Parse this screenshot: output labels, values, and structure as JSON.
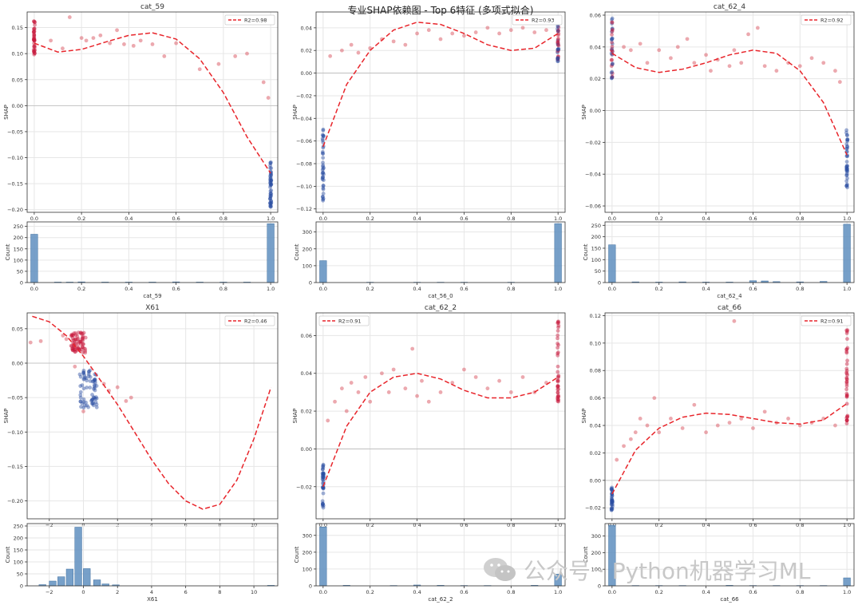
{
  "figure_title": "专业SHAP依赖图 - Top 6特征 (多项式拟合)",
  "watermark": {
    "text": "公众号 · Python机器学习ML",
    "icon": "wechat-icon"
  },
  "colors": {
    "fit": "#e8252b",
    "hist": "#5f8fbf",
    "low": "#2b4ea2",
    "high": "#c8193c",
    "grid": "#e6e6e6"
  },
  "chart_data": [
    {
      "id": "cat_59",
      "type": "scatter",
      "title": "cat_59",
      "xlabel": "cat_59",
      "ylabel": "SHAP",
      "xlim": [
        -0.03,
        1.03
      ],
      "ylim": [
        -0.205,
        0.18
      ],
      "xticks": [
        0.0,
        0.2,
        0.4,
        0.6,
        0.8,
        1.0
      ],
      "yticks": [
        -0.2,
        -0.15,
        -0.1,
        -0.05,
        0.0,
        0.05,
        0.1,
        0.15
      ],
      "legend": {
        "label": "R2=0.98",
        "position": "top-right"
      },
      "fit": {
        "x": [
          0.0,
          0.1,
          0.2,
          0.3,
          0.4,
          0.5,
          0.6,
          0.7,
          0.8,
          0.9,
          1.0
        ],
        "y": [
          0.12,
          0.103,
          0.108,
          0.122,
          0.135,
          0.14,
          0.128,
          0.09,
          0.025,
          -0.06,
          -0.13
        ]
      },
      "clusters": [
        {
          "x": 0.0,
          "y_min": 0.095,
          "y_max": 0.165,
          "n": 40,
          "color": "high"
        },
        {
          "x": 1.0,
          "y_min": -0.195,
          "y_max": -0.1,
          "n": 50,
          "color": "low"
        }
      ],
      "points": [
        [
          0.07,
          0.125
        ],
        [
          0.12,
          0.11
        ],
        [
          0.15,
          0.17
        ],
        [
          0.2,
          0.13
        ],
        [
          0.22,
          0.125
        ],
        [
          0.25,
          0.13
        ],
        [
          0.28,
          0.135
        ],
        [
          0.32,
          0.12
        ],
        [
          0.35,
          0.145
        ],
        [
          0.38,
          0.118
        ],
        [
          0.42,
          0.115
        ],
        [
          0.45,
          0.125
        ],
        [
          0.5,
          0.118
        ],
        [
          0.55,
          0.095
        ],
        [
          0.6,
          0.12
        ],
        [
          0.7,
          0.07
        ],
        [
          0.78,
          0.08
        ],
        [
          0.85,
          0.095
        ],
        [
          0.9,
          0.1
        ],
        [
          0.97,
          0.045
        ],
        [
          0.99,
          0.015
        ]
      ],
      "hist": {
        "ylabel": "Count",
        "ylim": [
          0,
          270
        ],
        "yticks": [
          0,
          50,
          100,
          150,
          200,
          250
        ],
        "bins": [
          [
            0.0,
            215
          ],
          [
            0.1,
            2
          ],
          [
            0.15,
            2
          ],
          [
            0.2,
            3
          ],
          [
            0.3,
            2
          ],
          [
            0.4,
            2
          ],
          [
            0.5,
            2
          ],
          [
            0.6,
            3
          ],
          [
            0.7,
            2
          ],
          [
            0.8,
            2
          ],
          [
            0.9,
            2
          ],
          [
            1.0,
            262
          ]
        ]
      }
    },
    {
      "id": "cat_56_0",
      "type": "scatter",
      "title": "",
      "xlabel": "cat_56_0",
      "ylabel": "SHAP",
      "xlim": [
        -0.03,
        1.03
      ],
      "ylim": [
        -0.123,
        0.054
      ],
      "xticks": [
        0.0,
        0.2,
        0.4,
        0.6,
        0.8,
        1.0
      ],
      "yticks": [
        -0.12,
        -0.1,
        -0.08,
        -0.06,
        -0.04,
        -0.02,
        0.0,
        0.02,
        0.04
      ],
      "legend": {
        "label": "R2=0.93",
        "position": "top-right"
      },
      "fit": {
        "x": [
          0.0,
          0.1,
          0.2,
          0.3,
          0.4,
          0.5,
          0.6,
          0.7,
          0.8,
          0.9,
          1.0
        ],
        "y": [
          -0.065,
          -0.01,
          0.02,
          0.038,
          0.045,
          0.043,
          0.035,
          0.025,
          0.02,
          0.022,
          0.035
        ]
      },
      "clusters": [
        {
          "x": 0.0,
          "y_min": -0.115,
          "y_max": -0.048,
          "n": 40,
          "color": "low"
        },
        {
          "x": 1.0,
          "y_min": 0.01,
          "y_max": 0.043,
          "n": 40,
          "color": "mixed"
        }
      ],
      "points": [
        [
          0.03,
          0.015
        ],
        [
          0.08,
          0.02
        ],
        [
          0.12,
          0.025
        ],
        [
          0.15,
          0.018
        ],
        [
          0.2,
          0.022
        ],
        [
          0.25,
          0.03
        ],
        [
          0.3,
          0.028
        ],
        [
          0.35,
          0.025
        ],
        [
          0.4,
          0.035
        ],
        [
          0.45,
          0.038
        ],
        [
          0.5,
          0.03
        ],
        [
          0.55,
          0.035
        ],
        [
          0.6,
          0.033
        ],
        [
          0.65,
          0.036
        ],
        [
          0.7,
          0.04
        ],
        [
          0.75,
          0.035
        ],
        [
          0.8,
          0.038
        ],
        [
          0.85,
          0.04
        ],
        [
          0.9,
          0.036
        ],
        [
          0.95,
          0.038
        ]
      ],
      "hist": {
        "ylabel": "Count",
        "ylim": [
          0,
          360
        ],
        "yticks": [
          0,
          100,
          200,
          300
        ],
        "bins": [
          [
            0.0,
            130
          ],
          [
            0.2,
            2
          ],
          [
            0.4,
            2
          ],
          [
            0.5,
            2
          ],
          [
            0.6,
            2
          ],
          [
            0.8,
            2
          ],
          [
            1.0,
            350
          ]
        ]
      }
    },
    {
      "id": "cat_62_4",
      "type": "scatter",
      "title": "cat_62_4",
      "xlabel": "cat_62_4",
      "ylabel": "SHAP",
      "xlim": [
        -0.03,
        1.03
      ],
      "ylim": [
        -0.064,
        0.062
      ],
      "xticks": [
        0.0,
        0.2,
        0.4,
        0.6,
        0.8,
        1.0
      ],
      "yticks": [
        -0.06,
        -0.04,
        -0.02,
        0.0,
        0.02,
        0.04,
        0.06
      ],
      "legend": {
        "label": "R2=0.92",
        "position": "top-right"
      },
      "fit": {
        "x": [
          0.0,
          0.1,
          0.2,
          0.3,
          0.4,
          0.5,
          0.6,
          0.7,
          0.8,
          0.9,
          1.0
        ],
        "y": [
          0.036,
          0.027,
          0.024,
          0.026,
          0.03,
          0.035,
          0.038,
          0.036,
          0.025,
          0.005,
          -0.028
        ]
      },
      "clusters": [
        {
          "x": 0.0,
          "y_min": 0.02,
          "y_max": 0.06,
          "n": 40,
          "color": "mixed"
        },
        {
          "x": 1.0,
          "y_min": -0.05,
          "y_max": -0.012,
          "n": 40,
          "color": "low"
        }
      ],
      "points": [
        [
          0.05,
          0.04
        ],
        [
          0.08,
          0.038
        ],
        [
          0.12,
          0.042
        ],
        [
          0.15,
          0.03
        ],
        [
          0.2,
          0.038
        ],
        [
          0.25,
          0.033
        ],
        [
          0.28,
          0.04
        ],
        [
          0.32,
          0.045
        ],
        [
          0.35,
          0.03
        ],
        [
          0.4,
          0.035
        ],
        [
          0.42,
          0.025
        ],
        [
          0.45,
          0.032
        ],
        [
          0.5,
          0.028
        ],
        [
          0.52,
          0.038
        ],
        [
          0.55,
          0.03
        ],
        [
          0.58,
          0.048
        ],
        [
          0.62,
          0.052
        ],
        [
          0.65,
          0.028
        ],
        [
          0.7,
          0.025
        ],
        [
          0.75,
          0.03
        ],
        [
          0.8,
          0.028
        ],
        [
          0.85,
          0.033
        ],
        [
          0.9,
          0.03
        ],
        [
          0.95,
          0.025
        ],
        [
          0.97,
          0.018
        ]
      ],
      "hist": {
        "ylabel": "Count",
        "ylim": [
          0,
          265
        ],
        "yticks": [
          0,
          50,
          100,
          150,
          200,
          250
        ],
        "bins": [
          [
            0.0,
            165
          ],
          [
            0.1,
            3
          ],
          [
            0.2,
            2
          ],
          [
            0.3,
            3
          ],
          [
            0.4,
            2
          ],
          [
            0.5,
            2
          ],
          [
            0.6,
            8
          ],
          [
            0.65,
            7
          ],
          [
            0.7,
            4
          ],
          [
            0.8,
            3
          ],
          [
            0.9,
            5
          ],
          [
            1.0,
            255
          ]
        ]
      }
    },
    {
      "id": "X61",
      "type": "scatter",
      "title": "X61",
      "xlabel": "X61",
      "ylabel": "SHAP",
      "xlim": [
        -3.3,
        11.4
      ],
      "ylim": [
        -0.226,
        0.073
      ],
      "xticks": [
        -2,
        0,
        2,
        4,
        6,
        8,
        10
      ],
      "yticks": [
        -0.2,
        -0.15,
        -0.1,
        -0.05,
        0.0,
        0.05
      ],
      "legend": {
        "label": "R2=0.46",
        "position": "top-right"
      },
      "fit": {
        "x": [
          -3.0,
          -2.0,
          -1.0,
          0.0,
          1.0,
          2.0,
          3.0,
          4.0,
          5.0,
          6.0,
          7.0,
          8.0,
          9.0,
          10.0,
          11.0
        ],
        "y": [
          0.068,
          0.06,
          0.04,
          0.01,
          -0.025,
          -0.06,
          -0.1,
          -0.14,
          -0.175,
          -0.2,
          -0.212,
          -0.205,
          -0.17,
          -0.11,
          -0.035
        ]
      },
      "clusters": [
        {
          "x": -0.3,
          "x_spread": 0.9,
          "y_min": 0.015,
          "y_max": 0.045,
          "n": 70,
          "color": "high"
        },
        {
          "x": 0.3,
          "x_spread": 1.0,
          "y_min": -0.065,
          "y_max": -0.01,
          "n": 70,
          "color": "low"
        }
      ],
      "points": [
        [
          -3.1,
          0.03
        ],
        [
          -2.5,
          0.032
        ],
        [
          -1.2,
          0.04
        ],
        [
          -1.0,
          0.035
        ],
        [
          1.2,
          -0.03
        ],
        [
          1.5,
          -0.04
        ],
        [
          2.0,
          -0.035
        ],
        [
          2.5,
          -0.055
        ],
        [
          2.8,
          -0.05
        ],
        [
          -0.5,
          -0.005
        ],
        [
          0.0,
          -0.07
        ]
      ],
      "hist": {
        "ylabel": "Count",
        "ylim": [
          0,
          260
        ],
        "yticks": [
          0,
          50,
          100,
          150,
          200,
          250
        ],
        "bins": [
          [
            -2.4,
            5
          ],
          [
            -1.8,
            20
          ],
          [
            -1.3,
            38
          ],
          [
            -0.8,
            70
          ],
          [
            -0.3,
            245
          ],
          [
            0.2,
            72
          ],
          [
            0.8,
            25
          ],
          [
            1.3,
            8
          ],
          [
            1.9,
            4
          ],
          [
            11.0,
            2
          ]
        ]
      }
    },
    {
      "id": "cat_62_2",
      "type": "scatter",
      "title": "cat_62_2",
      "xlabel": "cat_62_2",
      "ylabel": "SHAP",
      "xlim": [
        -0.03,
        1.03
      ],
      "ylim": [
        -0.037,
        0.072
      ],
      "xticks": [
        0.0,
        0.2,
        0.4,
        0.6,
        0.8,
        1.0
      ],
      "yticks": [
        -0.02,
        0.0,
        0.02,
        0.04,
        0.06
      ],
      "legend": {
        "label": "R2=0.91",
        "position": "top-left"
      },
      "fit": {
        "x": [
          0.0,
          0.1,
          0.2,
          0.3,
          0.4,
          0.5,
          0.6,
          0.7,
          0.8,
          0.9,
          1.0
        ],
        "y": [
          -0.02,
          0.012,
          0.03,
          0.038,
          0.04,
          0.037,
          0.031,
          0.027,
          0.027,
          0.03,
          0.038
        ]
      },
      "clusters": [
        {
          "x": 0.0,
          "y_min": -0.032,
          "y_max": -0.008,
          "n": 40,
          "color": "low"
        },
        {
          "x": 1.0,
          "y_min": 0.025,
          "y_max": 0.068,
          "n": 40,
          "color": "high"
        }
      ],
      "points": [
        [
          0.02,
          0.015
        ],
        [
          0.05,
          0.025
        ],
        [
          0.08,
          0.032
        ],
        [
          0.1,
          0.02
        ],
        [
          0.12,
          0.035
        ],
        [
          0.15,
          0.03
        ],
        [
          0.18,
          0.038
        ],
        [
          0.2,
          0.025
        ],
        [
          0.25,
          0.04
        ],
        [
          0.28,
          0.03
        ],
        [
          0.3,
          0.042
        ],
        [
          0.35,
          0.032
        ],
        [
          0.38,
          0.053
        ],
        [
          0.4,
          0.028
        ],
        [
          0.42,
          0.036
        ],
        [
          0.45,
          0.025
        ],
        [
          0.5,
          0.03
        ],
        [
          0.55,
          0.035
        ],
        [
          0.6,
          0.042
        ],
        [
          0.65,
          0.038
        ],
        [
          0.7,
          0.032
        ],
        [
          0.75,
          0.036
        ],
        [
          0.8,
          0.03
        ],
        [
          0.85,
          0.038
        ],
        [
          0.9,
          0.03
        ],
        [
          0.95,
          0.035
        ]
      ],
      "hist": {
        "ylabel": "Count",
        "ylim": [
          0,
          370
        ],
        "yticks": [
          0,
          100,
          200,
          300
        ],
        "bins": [
          [
            0.0,
            350
          ],
          [
            0.1,
            3
          ],
          [
            0.3,
            2
          ],
          [
            0.4,
            5
          ],
          [
            0.5,
            3
          ],
          [
            0.6,
            2
          ],
          [
            0.7,
            2
          ],
          [
            0.9,
            3
          ],
          [
            1.0,
            70
          ]
        ]
      }
    },
    {
      "id": "cat_66",
      "type": "scatter",
      "title": "cat_66",
      "xlabel": "cat_66",
      "ylabel": "SHAP",
      "xlim": [
        -0.03,
        1.03
      ],
      "ylim": [
        -0.028,
        0.122
      ],
      "xticks": [
        0.0,
        0.2,
        0.4,
        0.6,
        0.8,
        1.0
      ],
      "yticks": [
        -0.02,
        0.0,
        0.02,
        0.04,
        0.06,
        0.08,
        0.1,
        0.12
      ],
      "legend": {
        "label": "R2=0.91",
        "position": "top-right"
      },
      "fit": {
        "x": [
          0.0,
          0.1,
          0.2,
          0.3,
          0.4,
          0.5,
          0.6,
          0.7,
          0.8,
          0.9,
          1.0
        ],
        "y": [
          -0.01,
          0.022,
          0.038,
          0.046,
          0.049,
          0.048,
          0.045,
          0.042,
          0.041,
          0.044,
          0.056
        ]
      },
      "clusters": [
        {
          "x": 0.0,
          "y_min": -0.022,
          "y_max": -0.005,
          "n": 35,
          "color": "low"
        },
        {
          "x": 1.0,
          "y_min": 0.035,
          "y_max": 0.11,
          "n": 40,
          "color": "high"
        }
      ],
      "points": [
        [
          0.02,
          0.015
        ],
        [
          0.05,
          0.025
        ],
        [
          0.08,
          0.03
        ],
        [
          0.1,
          0.035
        ],
        [
          0.12,
          0.045
        ],
        [
          0.15,
          0.04
        ],
        [
          0.18,
          0.06
        ],
        [
          0.2,
          0.035
        ],
        [
          0.25,
          0.045
        ],
        [
          0.3,
          0.038
        ],
        [
          0.35,
          0.055
        ],
        [
          0.4,
          0.035
        ],
        [
          0.45,
          0.04
        ],
        [
          0.5,
          0.042
        ],
        [
          0.52,
          0.116
        ],
        [
          0.55,
          0.045
        ],
        [
          0.6,
          0.038
        ],
        [
          0.65,
          0.05
        ],
        [
          0.7,
          0.042
        ],
        [
          0.75,
          0.045
        ],
        [
          0.8,
          0.04
        ],
        [
          0.85,
          0.042
        ],
        [
          0.9,
          0.045
        ],
        [
          0.95,
          0.04
        ]
      ],
      "hist": {
        "ylabel": "Count",
        "ylim": [
          0,
          375
        ],
        "yticks": [
          0,
          100,
          200,
          300
        ],
        "bins": [
          [
            0.0,
            365
          ],
          [
            0.1,
            2
          ],
          [
            0.2,
            2
          ],
          [
            0.3,
            2
          ],
          [
            0.5,
            3
          ],
          [
            0.6,
            2
          ],
          [
            0.7,
            2
          ],
          [
            0.8,
            2
          ],
          [
            0.9,
            2
          ],
          [
            1.0,
            48
          ]
        ]
      }
    }
  ]
}
